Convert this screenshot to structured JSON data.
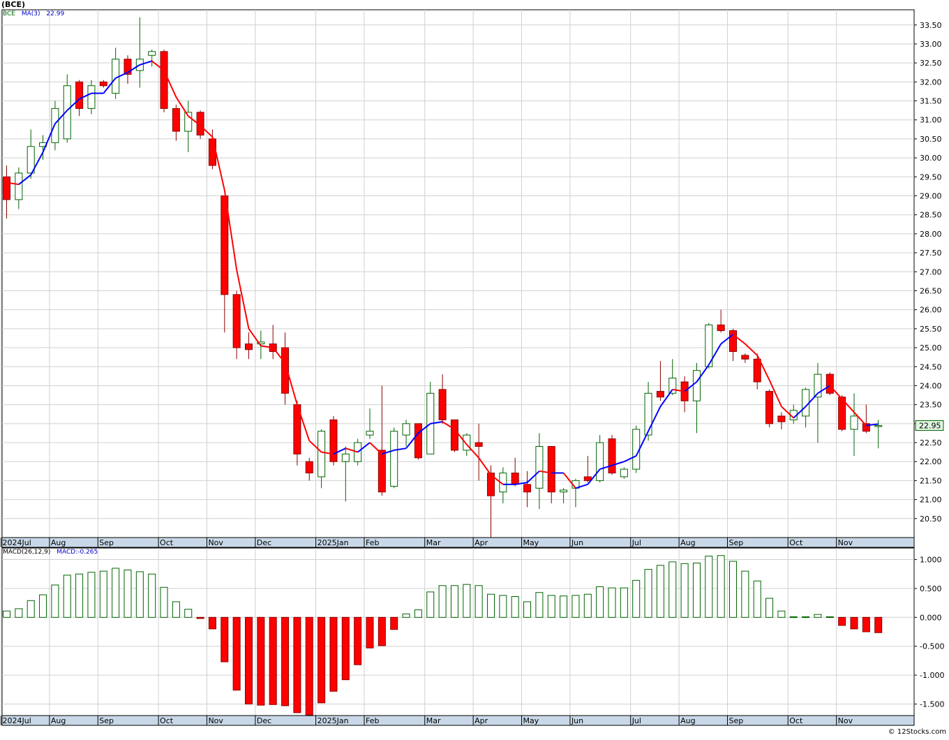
{
  "header": {
    "title": "(BCE)"
  },
  "legend_price": {
    "symbol": "BCE",
    "ma_label": "MA(3)",
    "ma_value": "22.99"
  },
  "legend_macd": {
    "label": "MACD(26,12,9)",
    "value_label": "MACD:-0.265"
  },
  "last_price_label": "22.95",
  "credit": "© 12Stocks.com",
  "colors": {
    "up": "#006400",
    "down": "#ff0000",
    "ma_up": "#0000ff",
    "ma_down": "#ff0000",
    "grid": "#d0d0d0",
    "axis_bg": "#c8d8e8"
  },
  "chart_data": [
    {
      "type": "candlestick",
      "title": "(BCE)",
      "ylim": [
        20.0,
        33.9
      ],
      "y_ticks": [
        "20.50",
        "21.00",
        "21.50",
        "22.00",
        "22.50",
        "23.00",
        "23.50",
        "24.00",
        "24.50",
        "25.00",
        "25.50",
        "26.00",
        "26.50",
        "27.00",
        "27.50",
        "28.00",
        "28.50",
        "29.00",
        "29.50",
        "30.00",
        "30.50",
        "31.00",
        "31.50",
        "32.00",
        "32.50",
        "33.00",
        "33.50"
      ],
      "x_labels": [
        "2024Jul",
        "Aug",
        "Sep",
        "Oct",
        "Nov",
        "Dec",
        "2025Jan",
        "Feb",
        "Mar",
        "Apr",
        "May",
        "Jun",
        "Jul",
        "Aug",
        "Sep",
        "Oct",
        "Nov"
      ],
      "x_label_week": [
        0,
        4,
        8,
        13,
        17,
        21,
        26,
        30,
        35,
        39,
        43,
        47,
        52,
        56,
        60,
        65,
        69
      ],
      "candles": [
        [
          29.5,
          28.9,
          29.8,
          28.4
        ],
        [
          28.9,
          29.6,
          29.75,
          28.65
        ],
        [
          29.6,
          30.3,
          30.75,
          29.45
        ],
        [
          30.3,
          30.4,
          30.6,
          29.95
        ],
        [
          30.4,
          31.3,
          31.5,
          30.2
        ],
        [
          30.5,
          31.9,
          32.2,
          30.4
        ],
        [
          32.0,
          31.3,
          32.05,
          31.1
        ],
        [
          31.3,
          31.9,
          32.05,
          31.15
        ],
        [
          32.0,
          31.9,
          32.05,
          31.85
        ],
        [
          31.7,
          32.6,
          32.9,
          31.55
        ],
        [
          32.6,
          32.2,
          32.7,
          31.95
        ],
        [
          32.3,
          32.6,
          33.7,
          31.85
        ],
        [
          32.7,
          32.8,
          32.85,
          32.4
        ],
        [
          32.8,
          31.3,
          32.85,
          31.2
        ],
        [
          31.3,
          30.7,
          31.4,
          30.45
        ],
        [
          30.7,
          31.2,
          31.5,
          30.15
        ],
        [
          31.2,
          30.6,
          31.25,
          30.5
        ],
        [
          30.5,
          29.8,
          30.75,
          29.7
        ],
        [
          29.0,
          26.4,
          29.0,
          25.4
        ],
        [
          26.4,
          25.0,
          26.5,
          24.7
        ],
        [
          25.1,
          24.95,
          25.4,
          24.7
        ],
        [
          25.1,
          25.15,
          25.45,
          24.7
        ],
        [
          25.1,
          24.9,
          25.6,
          24.7
        ],
        [
          25.0,
          23.8,
          25.4,
          23.5
        ],
        [
          23.5,
          22.2,
          23.6,
          21.9
        ],
        [
          22.0,
          21.7,
          22.1,
          21.5
        ],
        [
          21.6,
          22.8,
          22.85,
          21.3
        ],
        [
          23.1,
          22.0,
          23.2,
          21.9
        ],
        [
          22.0,
          22.2,
          22.4,
          20.95
        ],
        [
          22.0,
          22.5,
          22.6,
          21.9
        ],
        [
          22.7,
          22.8,
          23.4,
          22.6
        ],
        [
          22.3,
          21.2,
          24.0,
          21.1
        ],
        [
          21.35,
          22.8,
          22.9,
          21.3
        ],
        [
          22.7,
          23.0,
          23.1,
          22.4
        ],
        [
          23.0,
          22.1,
          23.0,
          22.05
        ],
        [
          22.2,
          23.8,
          24.1,
          22.2
        ],
        [
          23.9,
          23.1,
          24.3,
          23.0
        ],
        [
          23.1,
          22.3,
          23.1,
          22.25
        ],
        [
          22.3,
          22.7,
          22.75,
          22.15
        ],
        [
          22.5,
          22.4,
          23.0,
          21.5
        ],
        [
          21.7,
          21.1,
          21.9,
          20.0
        ],
        [
          21.2,
          21.7,
          21.85,
          20.9
        ],
        [
          21.7,
          21.4,
          22.1,
          21.35
        ],
        [
          21.4,
          21.2,
          21.75,
          20.8
        ],
        [
          21.3,
          22.4,
          22.75,
          20.75
        ],
        [
          22.4,
          21.2,
          22.4,
          20.9
        ],
        [
          21.2,
          21.25,
          21.3,
          20.9
        ],
        [
          21.3,
          21.5,
          21.55,
          20.8
        ],
        [
          21.6,
          21.5,
          22.15,
          21.45
        ],
        [
          21.5,
          22.5,
          22.7,
          21.45
        ],
        [
          22.6,
          21.7,
          22.7,
          21.65
        ],
        [
          21.6,
          21.8,
          21.85,
          21.55
        ],
        [
          21.8,
          22.85,
          22.95,
          21.7
        ],
        [
          22.7,
          23.8,
          24.1,
          22.55
        ],
        [
          23.85,
          23.7,
          24.65,
          23.6
        ],
        [
          23.8,
          24.2,
          24.7,
          23.75
        ],
        [
          24.1,
          23.6,
          24.25,
          23.3
        ],
        [
          23.6,
          24.4,
          24.6,
          22.75
        ],
        [
          24.5,
          25.6,
          25.65,
          24.45
        ],
        [
          25.6,
          25.45,
          26.0,
          25.4
        ],
        [
          25.45,
          24.9,
          25.5,
          24.65
        ],
        [
          24.8,
          24.7,
          24.85,
          24.6
        ],
        [
          24.7,
          24.1,
          24.85,
          23.9
        ],
        [
          23.85,
          23.0,
          23.9,
          22.9
        ],
        [
          23.2,
          23.05,
          23.3,
          22.85
        ],
        [
          23.1,
          23.35,
          23.5,
          23.0
        ],
        [
          23.2,
          23.9,
          23.95,
          22.9
        ],
        [
          23.7,
          24.3,
          24.6,
          22.5
        ],
        [
          24.3,
          23.8,
          24.35,
          23.75
        ],
        [
          23.7,
          22.85,
          23.75,
          22.8
        ],
        [
          22.85,
          23.2,
          23.8,
          22.15
        ],
        [
          23.0,
          22.8,
          23.5,
          22.75
        ],
        [
          22.95,
          22.95,
          23.1,
          22.35
        ]
      ],
      "ma3": [
        29.35,
        29.3,
        29.55,
        30.15,
        30.9,
        31.25,
        31.55,
        31.7,
        31.7,
        32.1,
        32.25,
        32.45,
        32.55,
        32.3,
        31.6,
        31.1,
        30.85,
        30.55,
        29.15,
        27.05,
        25.5,
        25.05,
        25.0,
        24.6,
        23.5,
        22.55,
        22.25,
        22.2,
        22.35,
        22.25,
        22.5,
        22.2,
        22.3,
        22.35,
        22.75,
        23.0,
        23.05,
        22.85,
        22.45,
        22.1,
        21.65,
        21.4,
        21.4,
        21.45,
        21.75,
        21.7,
        21.7,
        21.3,
        21.4,
        21.8,
        21.9,
        22.0,
        22.15,
        22.8,
        23.45,
        23.9,
        23.85,
        24.1,
        24.55,
        25.1,
        25.35,
        25.1,
        24.8,
        24.15,
        23.45,
        23.15,
        23.45,
        23.8,
        24.0,
        23.65,
        23.3,
        22.95,
        22.99
      ]
    },
    {
      "type": "bar",
      "title": "MACD(26,12,9)",
      "ylim": [
        -1.7,
        1.2
      ],
      "y_ticks": [
        "1.000",
        "0.500",
        "0.000",
        "-0.500",
        "-1.000",
        "-1.500"
      ],
      "values": [
        0.11,
        0.15,
        0.29,
        0.39,
        0.56,
        0.73,
        0.75,
        0.78,
        0.8,
        0.85,
        0.82,
        0.79,
        0.75,
        0.52,
        0.27,
        0.14,
        -0.02,
        -0.2,
        -0.77,
        -1.26,
        -1.5,
        -1.52,
        -1.51,
        -1.53,
        -1.65,
        -1.69,
        -1.48,
        -1.28,
        -1.08,
        -0.82,
        -0.53,
        -0.49,
        -0.21,
        0.06,
        0.13,
        0.44,
        0.55,
        0.55,
        0.57,
        0.55,
        0.4,
        0.38,
        0.36,
        0.27,
        0.43,
        0.38,
        0.37,
        0.38,
        0.4,
        0.53,
        0.51,
        0.51,
        0.64,
        0.83,
        0.9,
        0.96,
        0.93,
        0.94,
        1.06,
        1.07,
        0.97,
        0.8,
        0.63,
        0.33,
        0.11,
        0.01,
        0.01,
        0.05,
        0.01,
        -0.14,
        -0.2,
        -0.25,
        -0.265
      ]
    }
  ]
}
